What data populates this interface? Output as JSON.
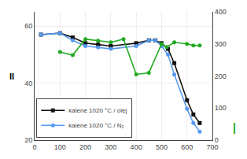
{
  "chart_data": {
    "type": "line",
    "title": "",
    "xlim": [
      0,
      700
    ],
    "xticks": [
      0,
      100,
      200,
      300,
      400,
      500,
      600,
      700
    ],
    "ylim": [
      20,
      65
    ],
    "yticks": [
      20,
      40,
      60
    ],
    "y2lim": [
      0,
      400
    ],
    "y2ticks": [
      0,
      100,
      200,
      300,
      400
    ],
    "grid": true,
    "legend": "lower left",
    "series": [
      {
        "name": "kalené 1020 °C / olej",
        "color": "#111111",
        "marker": "square",
        "line_style": "solid",
        "x": [
          25,
          100,
          150,
          200,
          250,
          300,
          400,
          450,
          475,
          500,
          525,
          550,
          600,
          625,
          650
        ],
        "values": [
          57,
          57.5,
          56,
          54,
          53.5,
          53,
          54,
          55,
          55,
          54,
          52,
          47,
          34,
          29,
          26
        ]
      },
      {
        "name": "kalené 1020 °C / N₂",
        "color": "#5599ee",
        "marker": "circle",
        "line_style": "solid",
        "x": [
          25,
          100,
          150,
          200,
          250,
          300,
          400,
          450,
          475,
          500,
          525,
          550,
          600,
          625,
          650
        ],
        "values": [
          57,
          57.5,
          55,
          53,
          52.5,
          52,
          53,
          55,
          55,
          53,
          50,
          43,
          31,
          26,
          23
        ]
      },
      {
        "color": "#22aa22",
        "marker": "circle",
        "line_style": "solid",
        "axis": "y2",
        "x": [
          100,
          150,
          200,
          250,
          300,
          350,
          400,
          450,
          500,
          520,
          550,
          600,
          625,
          650
        ],
        "values": [
          275,
          265,
          315,
          310,
          305,
          315,
          205,
          210,
          300,
          290,
          305,
          300,
          295,
          295
        ]
      }
    ],
    "annotations": [
      {
        "text": "II"
      },
      {
        "text": "|",
        "color": "#22aa22"
      }
    ]
  }
}
